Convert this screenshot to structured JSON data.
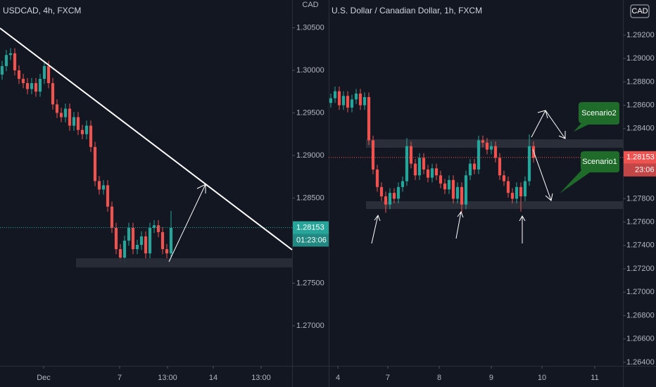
{
  "chart_data": [
    {
      "type": "candlestick",
      "title": "USDCAD, 4h, FXCM",
      "axis_unit": "CAD",
      "up_color": "#26a69a",
      "down_color": "#ef5350",
      "open": [
        1.2995,
        1.3005,
        1.3018,
        1.302,
        1.3,
        1.299,
        1.2985,
        1.2978,
        1.2985,
        1.2975,
        1.299,
        1.3005,
        1.2985,
        1.296,
        1.295,
        1.2945,
        1.2955,
        1.2935,
        1.2945,
        1.293,
        1.2925,
        1.2935,
        1.291,
        1.287,
        1.286,
        1.2865,
        1.284,
        1.2815,
        1.279,
        1.278,
        1.28,
        1.2815,
        1.279,
        1.2795,
        1.2805,
        1.2785,
        1.2815,
        1.2818,
        1.281,
        1.279,
        1.2785
      ],
      "high": [
        1.3011,
        1.3024,
        1.3026,
        1.3026,
        1.3006,
        1.2996,
        1.2991,
        1.2991,
        1.2991,
        1.2996,
        1.3011,
        1.3011,
        1.2991,
        1.2966,
        1.2956,
        1.2961,
        1.2961,
        1.2951,
        1.2951,
        1.2936,
        1.2941,
        1.2941,
        1.2916,
        1.2876,
        1.2871,
        1.2871,
        1.2846,
        1.2821,
        1.2796,
        1.2806,
        1.2821,
        1.2821,
        1.2801,
        1.2811,
        1.2811,
        1.2821,
        1.2824,
        1.2824,
        1.2816,
        1.2796,
        1.2835
      ],
      "low": [
        1.2989,
        1.2999,
        1.3012,
        1.2994,
        1.2984,
        1.2979,
        1.2972,
        1.2972,
        1.2969,
        1.2969,
        1.2984,
        1.2979,
        1.2954,
        1.2944,
        1.2939,
        1.2939,
        1.2929,
        1.2929,
        1.2924,
        1.2919,
        1.2919,
        1.2904,
        1.2864,
        1.2854,
        1.2854,
        1.2834,
        1.2809,
        1.2784,
        1.2774,
        1.2774,
        1.2794,
        1.2784,
        1.2784,
        1.2789,
        1.2779,
        1.2779,
        1.2809,
        1.2804,
        1.2784,
        1.2779,
        1.2779
      ],
      "close": [
        1.3005,
        1.3018,
        1.302,
        1.3,
        1.299,
        1.2985,
        1.2978,
        1.2985,
        1.2975,
        1.299,
        1.3005,
        1.2985,
        1.296,
        1.295,
        1.2945,
        1.2955,
        1.2935,
        1.2945,
        1.293,
        1.2925,
        1.2935,
        1.291,
        1.287,
        1.286,
        1.2865,
        1.284,
        1.2815,
        1.279,
        1.278,
        1.28,
        1.2815,
        1.279,
        1.2795,
        1.2805,
        1.2785,
        1.2815,
        1.2818,
        1.281,
        1.279,
        1.2785,
        1.2815
      ],
      "xlim": [
        -0.5,
        68.67
      ],
      "xticks": [
        {
          "value": 9.83,
          "label": "Dec"
        },
        {
          "value": 27.83,
          "label": "7"
        },
        {
          "value": 39.17,
          "label": "13:00"
        },
        {
          "value": 50,
          "label": "14"
        },
        {
          "value": 61.33,
          "label": "13:00"
        }
      ],
      "ylim": [
        1.26529,
        1.30826
      ],
      "yticks": [
        {
          "value": 1.305,
          "label": "1.30500"
        },
        {
          "value": 1.3,
          "label": "1.30000"
        },
        {
          "value": 1.295,
          "label": "1.29500"
        },
        {
          "value": 1.29,
          "label": "1.29000"
        },
        {
          "value": 1.285,
          "label": "1.28500"
        },
        {
          "value": 1.275,
          "label": "1.27500"
        },
        {
          "value": 1.27,
          "label": "1.27000"
        }
      ],
      "last_price": 1.28153,
      "countdown": "01:23:06"
    },
    {
      "type": "candlestick",
      "title": "U.S. Dollar / Canadian Dollar, 1h, FXCM",
      "axis_unit": "CAD",
      "up_color": "#26a69a",
      "down_color": "#ef5350",
      "open": [
        1.2862,
        1.2866,
        1.2872,
        1.286,
        1.2868,
        1.2858,
        1.2865,
        1.287,
        1.286,
        1.2867,
        1.283,
        1.2805,
        1.279,
        1.2782,
        1.2775,
        1.2785,
        1.278,
        1.279,
        1.2795,
        1.2825,
        1.281,
        1.28,
        1.2815,
        1.2805,
        1.2798,
        1.2806,
        1.28,
        1.2793,
        1.2788,
        1.2796,
        1.278,
        1.279,
        1.2775,
        1.28,
        1.281,
        1.2805,
        1.283,
        1.2828,
        1.2822,
        1.2825,
        1.2815,
        1.28,
        1.2795,
        1.2785,
        1.278,
        1.279,
        1.2782,
        1.2795,
        1.2825
      ],
      "high": [
        1.287,
        1.2876,
        1.2876,
        1.2872,
        1.2872,
        1.2869,
        1.2874,
        1.2874,
        1.2871,
        1.2871,
        1.2834,
        1.2809,
        1.2794,
        1.2786,
        1.2789,
        1.2789,
        1.2794,
        1.2799,
        1.2832,
        1.2829,
        1.2814,
        1.2819,
        1.2819,
        1.2809,
        1.281,
        1.281,
        1.2804,
        1.2797,
        1.28,
        1.28,
        1.2794,
        1.2794,
        1.2804,
        1.2814,
        1.2814,
        1.2834,
        1.2834,
        1.2832,
        1.2829,
        1.2829,
        1.2819,
        1.2804,
        1.2799,
        1.2789,
        1.2794,
        1.2794,
        1.2799,
        1.2835,
        1.2829
      ],
      "low": [
        1.2858,
        1.2862,
        1.2856,
        1.2856,
        1.2854,
        1.2854,
        1.2861,
        1.2856,
        1.2856,
        1.2826,
        1.2801,
        1.2786,
        1.2778,
        1.2768,
        1.2771,
        1.2776,
        1.2776,
        1.2786,
        1.2791,
        1.2806,
        1.2796,
        1.2796,
        1.2801,
        1.2794,
        1.2794,
        1.2796,
        1.2789,
        1.2784,
        1.2784,
        1.2776,
        1.2776,
        1.2768,
        1.2771,
        1.2796,
        1.2801,
        1.2801,
        1.2824,
        1.2818,
        1.2818,
        1.2811,
        1.2796,
        1.2791,
        1.2781,
        1.2776,
        1.2776,
        1.2769,
        1.2778,
        1.2791,
        1.2811
      ],
      "close": [
        1.2866,
        1.2872,
        1.286,
        1.2868,
        1.2858,
        1.2865,
        1.287,
        1.286,
        1.2867,
        1.283,
        1.2805,
        1.279,
        1.2782,
        1.2775,
        1.2785,
        1.278,
        1.279,
        1.2795,
        1.2825,
        1.281,
        1.28,
        1.2815,
        1.2805,
        1.2798,
        1.2806,
        1.28,
        1.2793,
        1.2788,
        1.2796,
        1.278,
        1.279,
        1.2775,
        1.28,
        1.281,
        1.2805,
        1.283,
        1.2828,
        1.2822,
        1.2825,
        1.2815,
        1.28,
        1.2795,
        1.2785,
        1.278,
        1.279,
        1.2782,
        1.2795,
        1.2825,
        1.2815
      ],
      "xlim": [
        -0.5,
        69.17
      ],
      "xticks": [
        {
          "value": 1.67,
          "label": "4"
        },
        {
          "value": 13.5,
          "label": "7"
        },
        {
          "value": 25.67,
          "label": "8"
        },
        {
          "value": 38,
          "label": "9"
        },
        {
          "value": 50,
          "label": "10"
        },
        {
          "value": 62.5,
          "label": "11"
        }
      ],
      "ylim": [
        1.26369,
        1.29501
      ],
      "yticks": [
        {
          "value": 1.292,
          "label": "1.29200"
        },
        {
          "value": 1.29,
          "label": "1.29000"
        },
        {
          "value": 1.288,
          "label": "1.28800"
        },
        {
          "value": 1.286,
          "label": "1.28600"
        },
        {
          "value": 1.284,
          "label": "1.28400"
        },
        {
          "value": 1.278,
          "label": "1.27800"
        },
        {
          "value": 1.276,
          "label": "1.27600"
        },
        {
          "value": 1.274,
          "label": "1.27400"
        },
        {
          "value": 1.272,
          "label": "1.27200"
        },
        {
          "value": 1.27,
          "label": "1.27000"
        },
        {
          "value": 1.268,
          "label": "1.26800"
        },
        {
          "value": 1.266,
          "label": "1.26600"
        },
        {
          "value": 1.264,
          "label": "1.26400"
        }
      ],
      "last_price": 1.28153,
      "countdown": "23:06",
      "annotations": [
        "Scenario2",
        "Scenario1"
      ]
    }
  ]
}
